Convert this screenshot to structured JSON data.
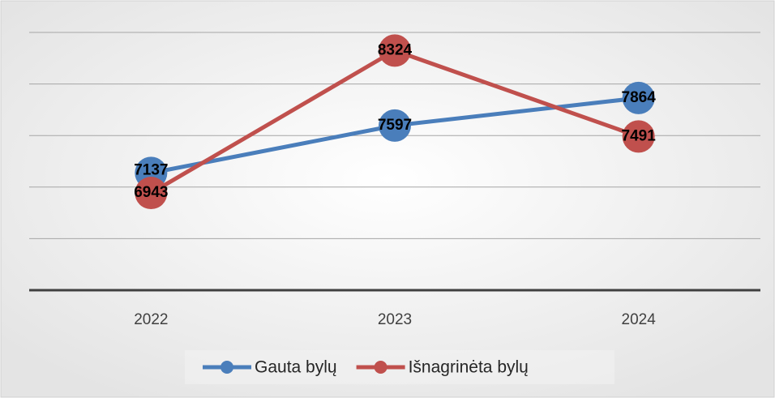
{
  "chart_data": {
    "type": "line",
    "categories": [
      "2022",
      "2023",
      "2024"
    ],
    "series": [
      {
        "name": "Gauta bylų",
        "color": "#4a7ebb",
        "values": [
          7137,
          7597,
          7864
        ]
      },
      {
        "name": "Išnagrinėta bylų",
        "color": "#c0504d",
        "values": [
          6943,
          8324,
          7491
        ]
      }
    ],
    "ylim": [
      6000,
      8500
    ],
    "yticks": [
      6000,
      6500,
      7000,
      7500,
      8000,
      8500
    ],
    "grid": true,
    "legend": "bottom"
  }
}
